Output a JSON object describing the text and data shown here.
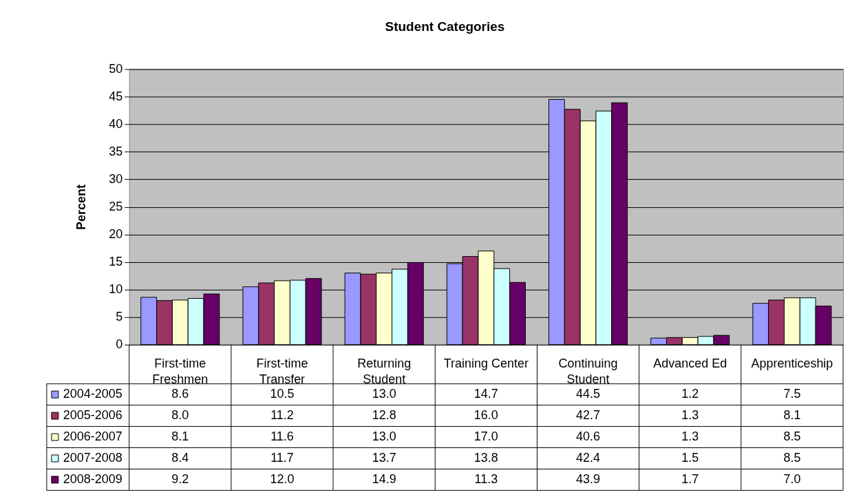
{
  "chart_data": {
    "type": "bar",
    "title": "Student Categories",
    "ylabel": "Percent",
    "categories": [
      "First-time Freshmen",
      "First-time Transfer",
      "Returning Student",
      "Training Center",
      "Continuing Student",
      "Advanced Ed",
      "Apprenticeship"
    ],
    "series": [
      {
        "name": "2004-2005",
        "color": "#9999ff",
        "values": [
          8.6,
          10.5,
          13.0,
          14.7,
          44.5,
          1.2,
          7.5
        ],
        "value_labels": [
          "8.6",
          "10.5",
          "13.0",
          "14.7",
          "44.5",
          "1.2",
          "7.5"
        ]
      },
      {
        "name": "2005-2006",
        "color": "#993366",
        "values": [
          8.0,
          11.2,
          12.8,
          16.0,
          42.7,
          1.3,
          8.1
        ],
        "value_labels": [
          "8.0",
          "11.2",
          "12.8",
          "16.0",
          "42.7",
          "1.3",
          "8.1"
        ]
      },
      {
        "name": "2006-2007",
        "color": "#ffffcc",
        "values": [
          8.1,
          11.6,
          13.0,
          17.0,
          40.6,
          1.3,
          8.5
        ],
        "value_labels": [
          "8.1",
          "11.6",
          "13.0",
          "17.0",
          "40.6",
          "1.3",
          "8.5"
        ]
      },
      {
        "name": "2007-2008",
        "color": "#ccffff",
        "values": [
          8.4,
          11.7,
          13.7,
          13.8,
          42.4,
          1.5,
          8.5
        ],
        "value_labels": [
          "8.4",
          "11.7",
          "13.7",
          "13.8",
          "42.4",
          "1.5",
          "8.5"
        ]
      },
      {
        "name": "2008-2009",
        "color": "#660066",
        "values": [
          9.2,
          12.0,
          14.9,
          11.3,
          43.9,
          1.7,
          7.0
        ],
        "value_labels": [
          "9.2",
          "12.0",
          "14.9",
          "11.3",
          "43.9",
          "1.7",
          "7.0"
        ]
      }
    ],
    "ylim": [
      0,
      50
    ],
    "yticks": [
      0,
      5,
      10,
      15,
      20,
      25,
      30,
      35,
      40,
      45,
      50
    ],
    "grid": "y",
    "legend": "bottom left"
  }
}
